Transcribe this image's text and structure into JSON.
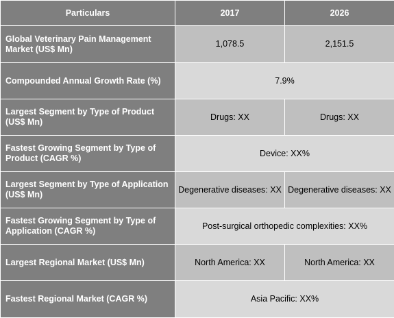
{
  "header": {
    "col1": "Particulars",
    "col2": "2017",
    "col3": "2026"
  },
  "rows": [
    {
      "label": "Global Veterinary Pain Management Market (US$ Mn)",
      "v2017": "1,078.5",
      "v2026": "2,151.5"
    },
    {
      "label": "Compounded Annual Growth Rate (%)",
      "merged": "7.9%"
    },
    {
      "label": "Largest Segment by Type of Product (US$ Mn)",
      "v2017": "Drugs: XX",
      "v2026": "Drugs: XX"
    },
    {
      "label": "Fastest Growing Segment by Type of Product (CAGR %)",
      "merged": "Device: XX%"
    },
    {
      "label": "Largest Segment by Type of Application (US$ Mn)",
      "v2017": "Degenerative diseases: XX",
      "v2026": "Degenerative diseases: XX"
    },
    {
      "label": "Fastest Growing Segment by Type of Application (CAGR %)",
      "merged": "Post-surgical orthopedic complexities: XX%"
    },
    {
      "label": "Largest Regional Market (US$ Mn)",
      "v2017": "North America: XX",
      "v2026": "North America: XX"
    },
    {
      "label": "Fastest Regional Market (CAGR %)",
      "merged": "Asia Pacific: XX%"
    }
  ]
}
